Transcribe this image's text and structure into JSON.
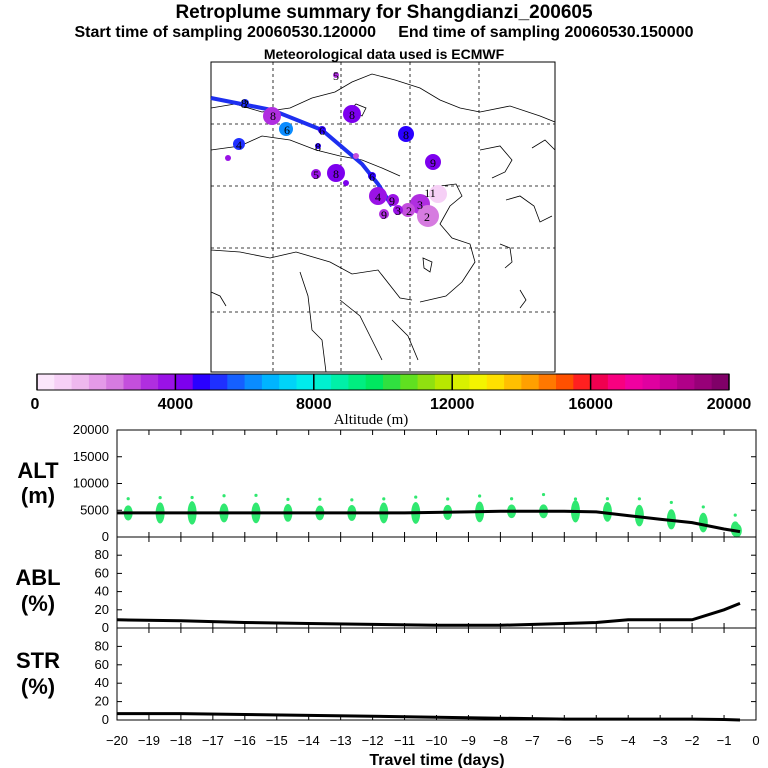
{
  "header": {
    "title": "Retroplume summary for Shangdianzi_200605",
    "start_label": "Start time of sampling 20060530.120000",
    "end_label": "End time of sampling 20060530.150000",
    "met_label": "Meteorological data used is ECMWF"
  },
  "colorbar": {
    "label": "Altitude (m)",
    "ticks": [
      "0",
      "4000",
      "8000",
      "12000",
      "16000",
      "20000"
    ],
    "colors": [
      "#fbe6fb",
      "#f6d0f6",
      "#eeb8ee",
      "#e49ae8",
      "#d67be0",
      "#c44fdd",
      "#b02ee0",
      "#9a12e6",
      "#7d00ee",
      "#2a00ff",
      "#1f30ff",
      "#1560ff",
      "#0a8cff",
      "#00b4ff",
      "#00d4f8",
      "#00ecec",
      "#00f0d0",
      "#00f0a8",
      "#00ee80",
      "#00e860",
      "#30e040",
      "#60e020",
      "#90e010",
      "#b8e800",
      "#d8f000",
      "#f4f400",
      "#ffe000",
      "#ffc000",
      "#ffa000",
      "#ff7800",
      "#ff5000",
      "#ff2020",
      "#f00050",
      "#f80080",
      "#f000a0",
      "#e000a0",
      "#c80098",
      "#b00088",
      "#980078",
      "#800068"
    ]
  },
  "map": {
    "labels": [
      "8",
      "6",
      "6",
      "5",
      "8",
      "8",
      "4",
      "8",
      "9",
      "5",
      "8",
      "6",
      "4",
      "9",
      "3",
      "11",
      "2",
      "9",
      "3",
      "2",
      "2"
    ]
  },
  "chart_data": [
    {
      "type": "line",
      "panel": "ALT",
      "ylabel": "ALT\n(m)",
      "ylabel_line1": "ALT",
      "ylabel_line2": "(m)",
      "ylim": [
        0,
        20000
      ],
      "yticks": [
        "0",
        "5000",
        "10000",
        "15000",
        "20000"
      ],
      "x": [
        -20,
        -19,
        -18,
        -17,
        -16,
        -15,
        -14,
        -13,
        -12,
        -11,
        -10,
        -9,
        -8,
        -7,
        -6,
        -5,
        -4,
        -3,
        -2,
        -1,
        -0.5
      ],
      "values": [
        4500,
        4500,
        4500,
        4500,
        4500,
        4500,
        4500,
        4500,
        4500,
        4500,
        4600,
        4700,
        4800,
        4800,
        4800,
        4700,
        4000,
        3300,
        2700,
        1500,
        1000
      ],
      "spread_color": "#30e870"
    },
    {
      "type": "line",
      "panel": "ABL",
      "ylabel_line1": "ABL",
      "ylabel_line2": "(%)",
      "ylim": [
        0,
        100
      ],
      "yticks": [
        "0",
        "20",
        "40",
        "60",
        "80"
      ],
      "x": [
        -20,
        -18,
        -16,
        -14,
        -12,
        -10,
        -8,
        -6,
        -5,
        -4,
        -3,
        -2,
        -1,
        -0.5
      ],
      "values": [
        9,
        8,
        6,
        5,
        4,
        3,
        3,
        5,
        6,
        9,
        9,
        9,
        20,
        27
      ]
    },
    {
      "type": "line",
      "panel": "STR",
      "ylabel_line1": "STR",
      "ylabel_line2": "(%)",
      "ylim": [
        0,
        100
      ],
      "yticks": [
        "0",
        "20",
        "40",
        "60",
        "80"
      ],
      "x": [
        -20,
        -18,
        -16,
        -14,
        -12,
        -10,
        -8,
        -6,
        -4,
        -2,
        -1,
        -0.5
      ],
      "values": [
        7,
        7,
        6,
        5,
        4,
        3,
        2,
        1,
        1,
        1,
        0.5,
        0
      ]
    }
  ],
  "xaxis": {
    "label": "Travel time (days)",
    "ticks": [
      "−20",
      "−19",
      "−18",
      "−17",
      "−16",
      "−15",
      "−14",
      "−13",
      "−12",
      "−11",
      "−10",
      "−9",
      "−8",
      "−7",
      "−6",
      "−5",
      "−4",
      "−3",
      "−2",
      "−1",
      "0"
    ]
  }
}
